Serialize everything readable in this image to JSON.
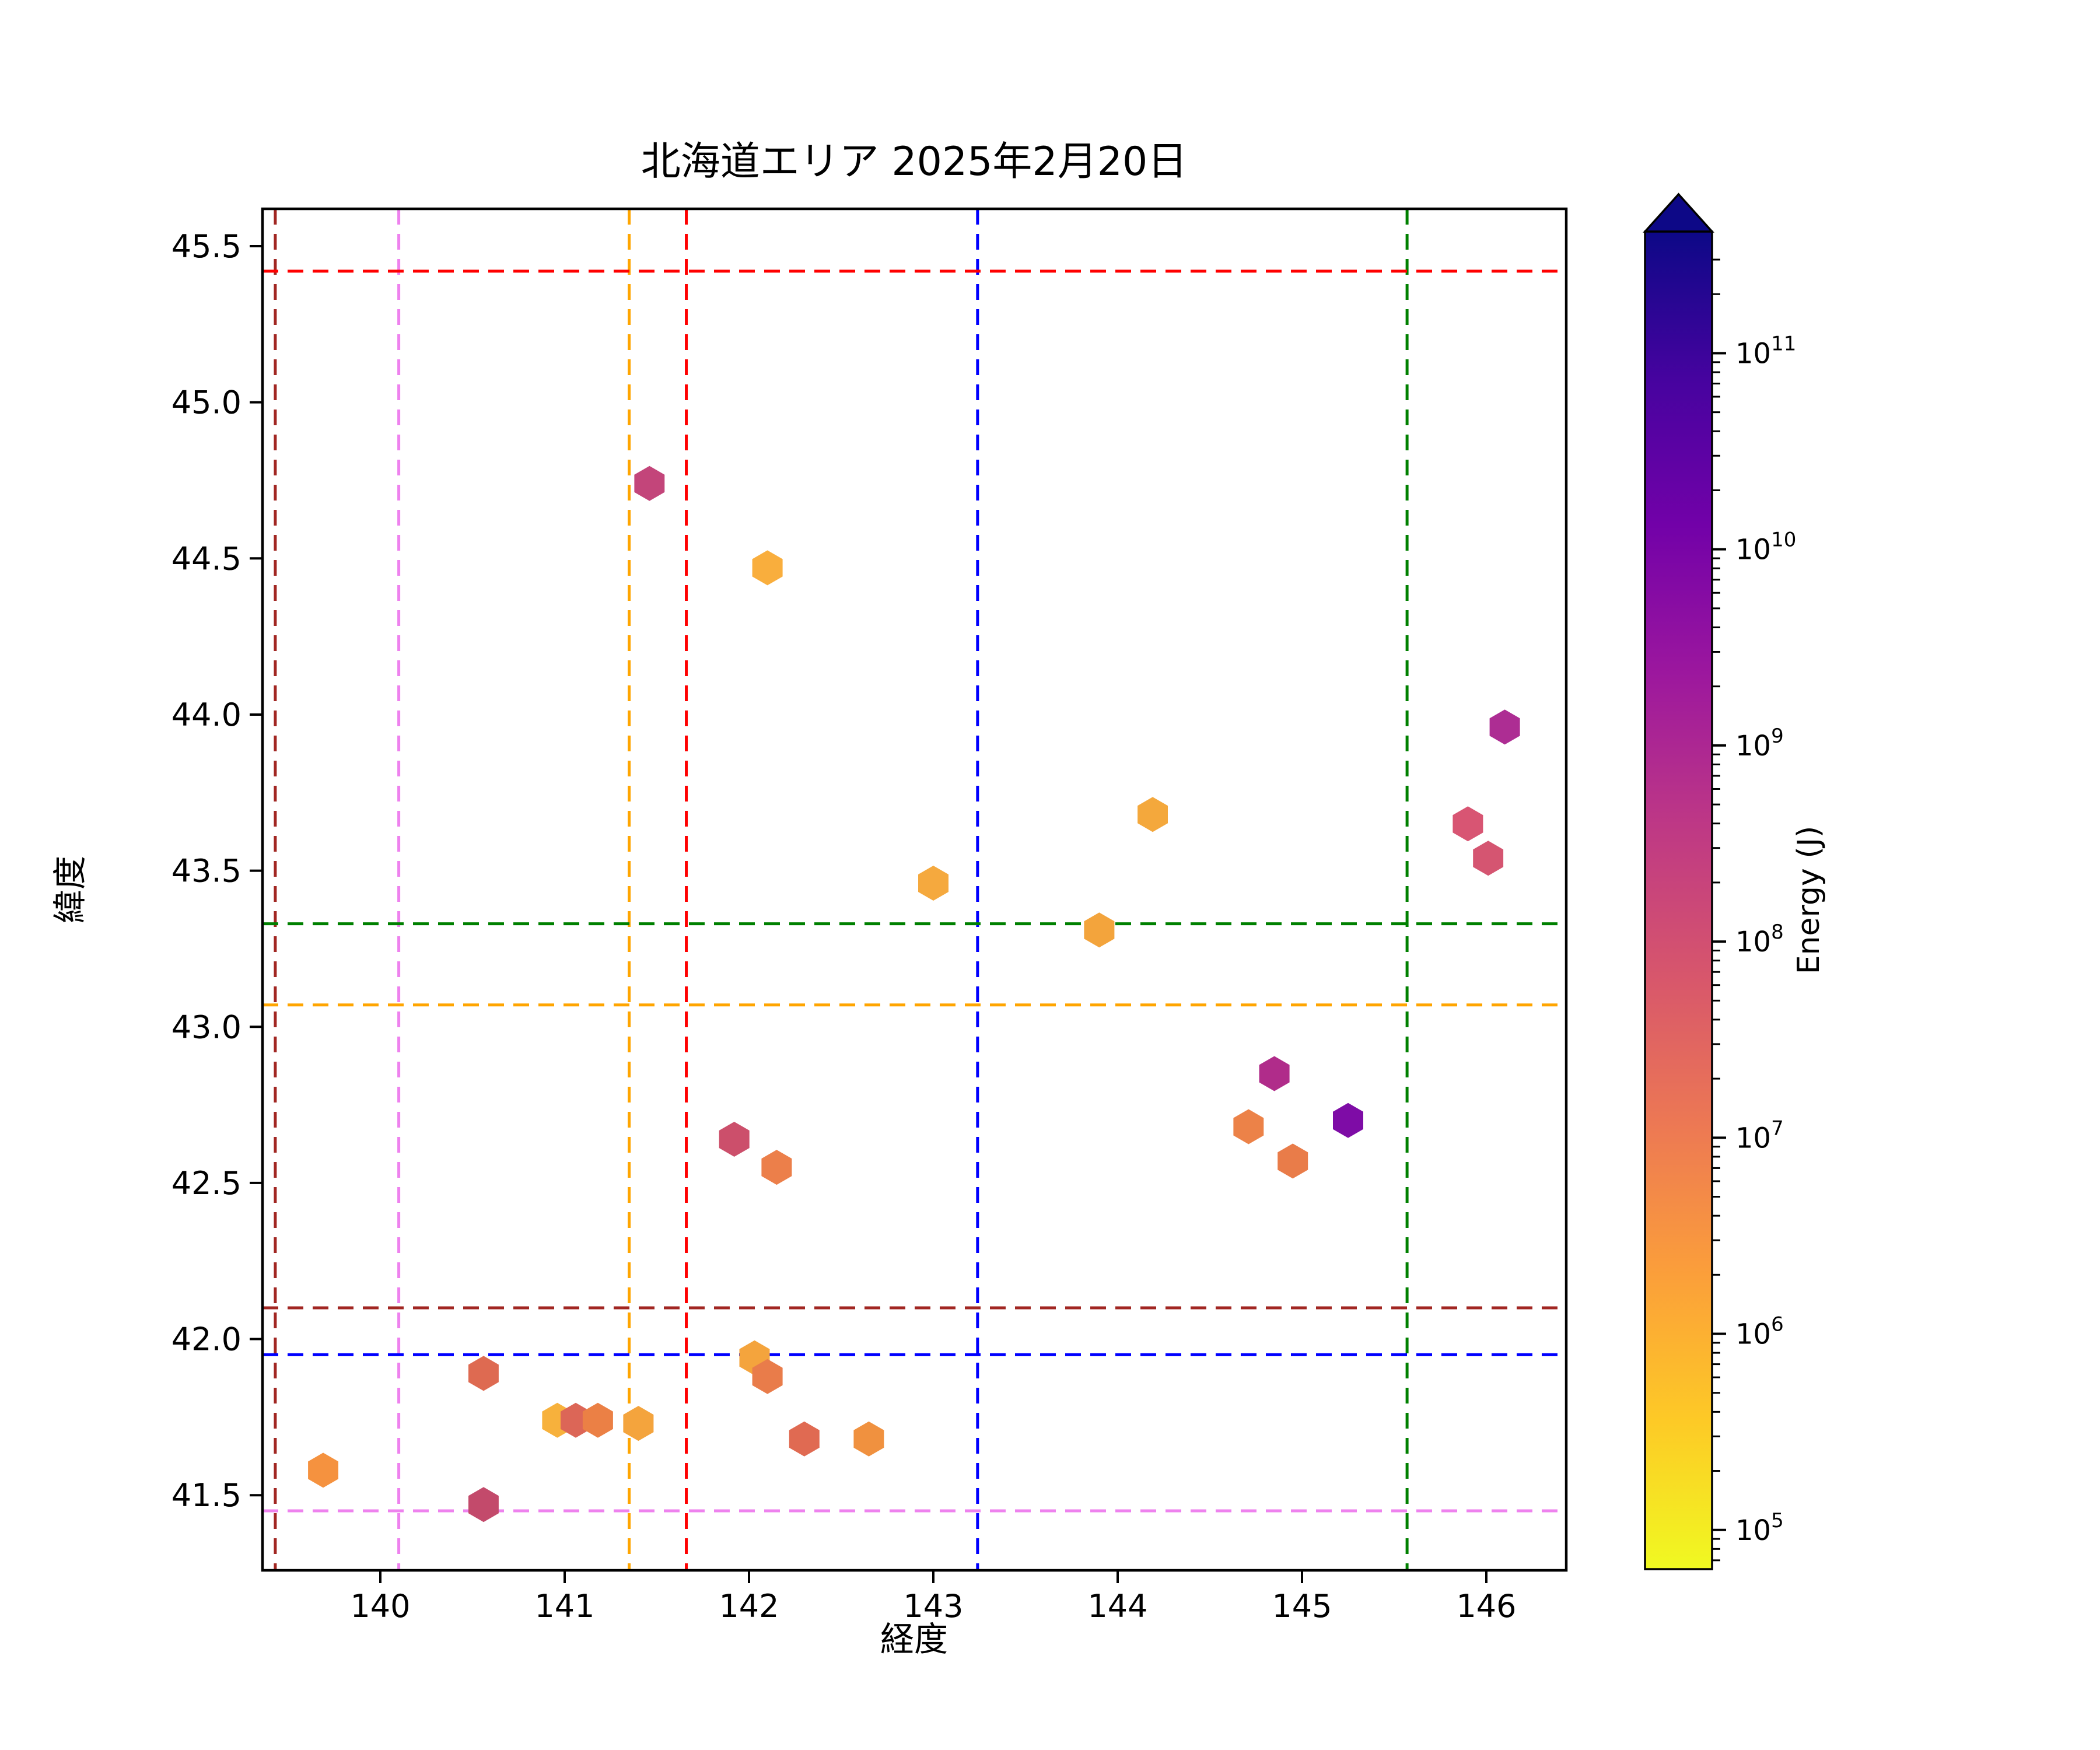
{
  "title": "北海道エリア 2025年2月20日",
  "x_axis": {
    "label": "経度",
    "ticks": [
      "140",
      "141",
      "142",
      "143",
      "144",
      "145",
      "146"
    ]
  },
  "y_axis": {
    "label": "緯度",
    "ticks": [
      "45.5",
      "45.0",
      "44.5",
      "44.0",
      "43.5",
      "43.0",
      "42.5",
      "42.0",
      "41.5"
    ]
  },
  "colorbar": {
    "label": "Energy (J)"
  },
  "chart_data": {
    "type": "scatter",
    "title": "北海道エリア 2025年2月20日",
    "xlabel": "経度",
    "ylabel": "緯度",
    "xlim": [
      139.36,
      146.43
    ],
    "ylim": [
      41.26,
      45.62
    ],
    "x_ticks": [
      140,
      141,
      142,
      143,
      144,
      145,
      146
    ],
    "y_ticks": [
      45.5,
      45.0,
      44.5,
      44.0,
      43.5,
      43.0,
      42.5,
      42.0,
      41.5
    ],
    "grid": false,
    "legend": "none",
    "marker": "hexagon",
    "colorbar": {
      "label": "Energy (J)",
      "scale": "log",
      "tick_exponents": [
        5,
        6,
        7,
        8,
        9,
        10,
        11
      ],
      "range_exponents": [
        4.8,
        11.62
      ],
      "extend": "max",
      "arrow_color": "#0d0887",
      "colormap_low_to_high": [
        "#f0f921",
        "#fdca26",
        "#fb9f3a",
        "#ed7953",
        "#d8576b",
        "#bd3786",
        "#9c179e",
        "#7201a8",
        "#46039f",
        "#0d0887"
      ]
    },
    "reference_lines": {
      "vertical": [
        {
          "lon": 139.43,
          "color": "#a12622"
        },
        {
          "lon": 140.1,
          "color": "#ee82ee"
        },
        {
          "lon": 141.35,
          "color": "#ffa500"
        },
        {
          "lon": 141.66,
          "color": "#ff0000"
        },
        {
          "lon": 143.24,
          "color": "#0000ff"
        },
        {
          "lon": 145.57,
          "color": "#008000"
        }
      ],
      "horizontal": [
        {
          "lat": 45.42,
          "color": "#ff0000"
        },
        {
          "lat": 43.33,
          "color": "#008000"
        },
        {
          "lat": 43.07,
          "color": "#ffa500"
        },
        {
          "lat": 42.1,
          "color": "#a12622"
        },
        {
          "lat": 41.95,
          "color": "#0000ff"
        },
        {
          "lat": 41.45,
          "color": "#ee82ee"
        }
      ]
    },
    "points": [
      {
        "lon": 139.69,
        "lat": 41.58,
        "color": "#f5923f",
        "energy_j_approx": 3000000.0
      },
      {
        "lon": 140.56,
        "lat": 41.89,
        "color": "#de6a51",
        "energy_j_approx": 20000000.0
      },
      {
        "lon": 140.56,
        "lat": 41.47,
        "color": "#c34a6b",
        "energy_j_approx": 100000000.0
      },
      {
        "lon": 140.96,
        "lat": 41.74,
        "color": "#f7b13c",
        "energy_j_approx": 800000.0
      },
      {
        "lon": 141.06,
        "lat": 41.74,
        "color": "#dc6657",
        "energy_j_approx": 30000000.0
      },
      {
        "lon": 141.18,
        "lat": 41.74,
        "color": "#eb8045",
        "energy_j_approx": 6000000.0
      },
      {
        "lon": 141.4,
        "lat": 41.73,
        "color": "#f4a43d",
        "energy_j_approx": 1600000.0
      },
      {
        "lon": 142.03,
        "lat": 41.94,
        "color": "#f4a43d",
        "energy_j_approx": 1600000.0
      },
      {
        "lon": 142.1,
        "lat": 41.88,
        "color": "#e97c4a",
        "energy_j_approx": 8000000.0
      },
      {
        "lon": 142.3,
        "lat": 41.68,
        "color": "#e06a52",
        "energy_j_approx": 15000000.0
      },
      {
        "lon": 142.65,
        "lat": 41.68,
        "color": "#f0913f",
        "energy_j_approx": 3000000.0
      },
      {
        "lon": 141.92,
        "lat": 42.64,
        "color": "#cc4f6b",
        "energy_j_approx": 60000000.0
      },
      {
        "lon": 142.15,
        "lat": 42.55,
        "color": "#ec7f4a",
        "energy_j_approx": 6000000.0
      },
      {
        "lon": 141.46,
        "lat": 44.74,
        "color": "#c3457a",
        "energy_j_approx": 200000000.0
      },
      {
        "lon": 142.1,
        "lat": 44.47,
        "color": "#f9ae3d",
        "energy_j_approx": 1000000.0
      },
      {
        "lon": 146.1,
        "lat": 43.96,
        "color": "#ad2d93",
        "energy_j_approx": 1000000000.0
      },
      {
        "lon": 144.19,
        "lat": 43.68,
        "color": "#f4a83c",
        "energy_j_approx": 1300000.0
      },
      {
        "lon": 145.9,
        "lat": 43.65,
        "color": "#d85573",
        "energy_j_approx": 50000000.0
      },
      {
        "lon": 146.01,
        "lat": 43.54,
        "color": "#d55571",
        "energy_j_approx": 50000000.0
      },
      {
        "lon": 143.0,
        "lat": 43.46,
        "color": "#f5a93e",
        "energy_j_approx": 1300000.0
      },
      {
        "lon": 143.9,
        "lat": 43.31,
        "color": "#f3a43c",
        "energy_j_approx": 1600000.0
      },
      {
        "lon": 144.85,
        "lat": 42.85,
        "color": "#b02c8a",
        "energy_j_approx": 600000000.0
      },
      {
        "lon": 144.71,
        "lat": 42.68,
        "color": "#ec8248",
        "energy_j_approx": 6000000.0
      },
      {
        "lon": 145.25,
        "lat": 42.7,
        "color": "#7e0ca6",
        "energy_j_approx": 10000000000.0
      },
      {
        "lon": 144.95,
        "lat": 42.57,
        "color": "#e97c49",
        "energy_j_approx": 8000000.0
      }
    ]
  }
}
